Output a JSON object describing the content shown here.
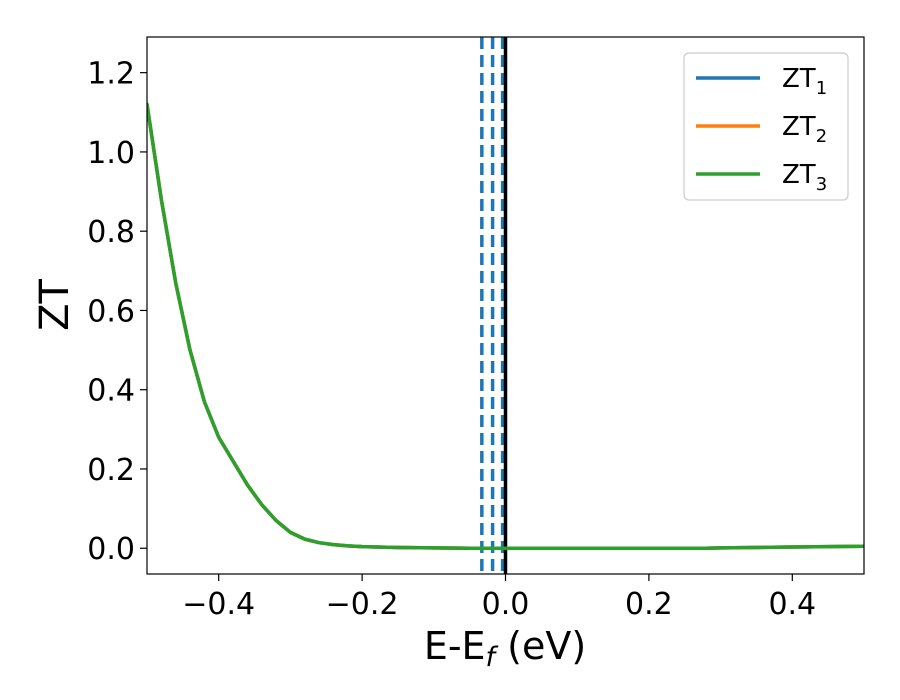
{
  "chart_data": {
    "type": "line",
    "xlabel": "E-E",
    "xlabel_sub": "f",
    "xlabel_unit": " (eV)",
    "ylabel": "ZT",
    "xlim": [
      -0.5,
      0.5
    ],
    "ylim": [
      -0.065,
      1.29
    ],
    "xticks": [
      -0.4,
      -0.2,
      0.0,
      0.2,
      0.4
    ],
    "xtick_labels": [
      "−0.4",
      "−0.2",
      "0.0",
      "0.2",
      "0.4"
    ],
    "yticks": [
      0.0,
      0.2,
      0.4,
      0.6,
      0.8,
      1.0,
      1.2
    ],
    "ytick_labels": [
      "0.0",
      "0.2",
      "0.4",
      "0.6",
      "0.8",
      "1.0",
      "1.2"
    ],
    "grid": false,
    "legend_position": "top-right",
    "series": [
      {
        "name": "ZT",
        "name_sub": "1",
        "color": "#1f77b4",
        "x": [
          -0.5,
          -0.48,
          -0.46,
          -0.44,
          -0.42,
          -0.4,
          -0.38,
          -0.36,
          -0.34,
          -0.32,
          -0.3,
          -0.28,
          -0.26,
          -0.24,
          -0.22,
          -0.2,
          -0.15,
          -0.1,
          -0.05,
          0.0,
          0.1,
          0.2,
          0.28,
          0.3,
          0.35,
          0.4,
          0.45,
          0.5
        ],
        "y": [
          1.12,
          0.88,
          0.67,
          0.5,
          0.37,
          0.28,
          0.22,
          0.16,
          0.11,
          0.07,
          0.04,
          0.023,
          0.014,
          0.009,
          0.006,
          0.004,
          0.002,
          0.001,
          0.0,
          0.0,
          0.0,
          0.0,
          0.0,
          0.001,
          0.002,
          0.003,
          0.004,
          0.005
        ]
      },
      {
        "name": "ZT",
        "name_sub": "2",
        "color": "#ff7f0e",
        "x": [
          -0.5,
          -0.48,
          -0.46,
          -0.44,
          -0.42,
          -0.4,
          -0.38,
          -0.36,
          -0.34,
          -0.32,
          -0.3,
          -0.28,
          -0.26,
          -0.24,
          -0.22,
          -0.2,
          -0.15,
          -0.1,
          -0.05,
          0.0,
          0.1,
          0.2,
          0.28,
          0.3,
          0.35,
          0.4,
          0.45,
          0.5
        ],
        "y": [
          1.12,
          0.88,
          0.67,
          0.5,
          0.37,
          0.28,
          0.22,
          0.16,
          0.11,
          0.07,
          0.04,
          0.023,
          0.014,
          0.009,
          0.006,
          0.004,
          0.002,
          0.001,
          0.0,
          0.0,
          0.0,
          0.0,
          0.0,
          0.001,
          0.002,
          0.003,
          0.004,
          0.005
        ]
      },
      {
        "name": "ZT",
        "name_sub": "3",
        "color": "#2ca02c",
        "x": [
          -0.5,
          -0.48,
          -0.46,
          -0.44,
          -0.42,
          -0.4,
          -0.38,
          -0.36,
          -0.34,
          -0.32,
          -0.3,
          -0.28,
          -0.26,
          -0.24,
          -0.22,
          -0.2,
          -0.15,
          -0.1,
          -0.05,
          0.0,
          0.1,
          0.2,
          0.28,
          0.3,
          0.35,
          0.4,
          0.45,
          0.5
        ],
        "y": [
          1.12,
          0.88,
          0.67,
          0.5,
          0.37,
          0.28,
          0.22,
          0.16,
          0.11,
          0.07,
          0.04,
          0.023,
          0.014,
          0.009,
          0.006,
          0.004,
          0.002,
          0.001,
          0.0,
          0.0,
          0.0,
          0.0,
          0.0,
          0.001,
          0.002,
          0.003,
          0.004,
          0.005
        ]
      }
    ],
    "vlines": [
      {
        "x": -0.033,
        "color": "#1f77b4",
        "style": "dashed"
      },
      {
        "x": -0.018,
        "color": "#1f77b4",
        "style": "dashed"
      },
      {
        "x": -0.004,
        "color": "#1f77b4",
        "style": "dashed"
      },
      {
        "x": 0.0,
        "color": "#000000",
        "style": "solid"
      }
    ]
  }
}
